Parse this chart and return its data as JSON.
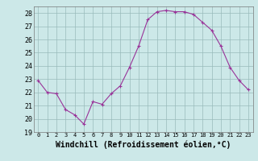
{
  "x": [
    0,
    1,
    2,
    3,
    4,
    5,
    6,
    7,
    8,
    9,
    10,
    11,
    12,
    13,
    14,
    15,
    16,
    17,
    18,
    19,
    20,
    21,
    22,
    23
  ],
  "y": [
    22.9,
    22.0,
    21.9,
    20.7,
    20.3,
    19.6,
    21.3,
    21.1,
    21.9,
    22.5,
    23.9,
    25.5,
    27.5,
    28.1,
    28.2,
    28.1,
    28.1,
    27.9,
    27.3,
    26.7,
    25.5,
    23.9,
    22.9,
    22.2
  ],
  "line_color": "#993399",
  "marker": "+",
  "marker_size": 3,
  "xlabel": "Windchill (Refroidissement éolien,°C)",
  "xlim_min": -0.5,
  "xlim_max": 23.5,
  "ylim_min": 19,
  "ylim_max": 28.5,
  "yticks": [
    19,
    20,
    21,
    22,
    23,
    24,
    25,
    26,
    27,
    28
  ],
  "xtick_labels": [
    "0",
    "1",
    "2",
    "3",
    "4",
    "5",
    "6",
    "7",
    "8",
    "9",
    "10",
    "11",
    "12",
    "13",
    "14",
    "15",
    "16",
    "17",
    "18",
    "19",
    "20",
    "21",
    "22",
    "23"
  ],
  "bg_color": "#cce8e8",
  "grid_color": "#99bbbb",
  "tick_fontsize": 6,
  "xlabel_fontsize": 7
}
